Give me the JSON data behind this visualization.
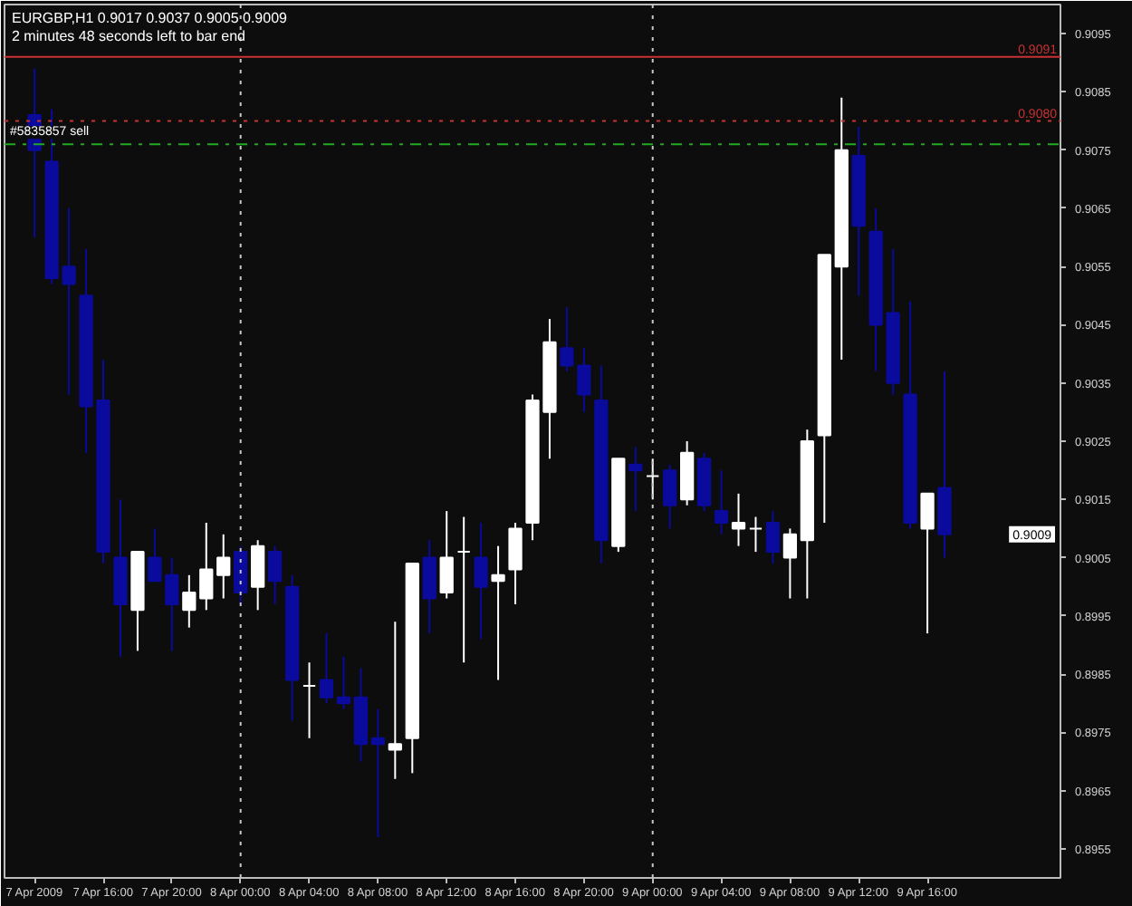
{
  "chart_data": {
    "type": "candlestick",
    "title": "EURGBP,H1  0.9017 0.9037 0.9005 0.9009",
    "subtitle": "2 minutes 48 seconds left to bar end",
    "x": [
      "2009-04-07T12:00",
      "2009-04-07T13:00",
      "2009-04-07T14:00",
      "2009-04-07T15:00",
      "2009-04-07T16:00",
      "2009-04-07T17:00",
      "2009-04-07T18:00",
      "2009-04-07T19:00",
      "2009-04-07T20:00",
      "2009-04-07T21:00",
      "2009-04-07T22:00",
      "2009-04-07T23:00",
      "2009-04-08T00:00",
      "2009-04-08T01:00",
      "2009-04-08T02:00",
      "2009-04-08T03:00",
      "2009-04-08T04:00",
      "2009-04-08T05:00",
      "2009-04-08T06:00",
      "2009-04-08T07:00",
      "2009-04-08T08:00",
      "2009-04-08T09:00",
      "2009-04-08T10:00",
      "2009-04-08T11:00",
      "2009-04-08T12:00",
      "2009-04-08T13:00",
      "2009-04-08T14:00",
      "2009-04-08T15:00",
      "2009-04-08T16:00",
      "2009-04-08T17:00",
      "2009-04-08T18:00",
      "2009-04-08T19:00",
      "2009-04-08T20:00",
      "2009-04-08T21:00",
      "2009-04-08T22:00",
      "2009-04-08T23:00",
      "2009-04-09T00:00",
      "2009-04-09T01:00",
      "2009-04-09T02:00",
      "2009-04-09T03:00",
      "2009-04-09T04:00",
      "2009-04-09T05:00",
      "2009-04-09T06:00",
      "2009-04-09T07:00",
      "2009-04-09T08:00",
      "2009-04-09T09:00",
      "2009-04-09T10:00",
      "2009-04-09T11:00",
      "2009-04-09T12:00",
      "2009-04-09T13:00",
      "2009-04-09T14:00",
      "2009-04-09T15:00",
      "2009-04-09T16:00",
      "2009-04-09T17:00"
    ],
    "ohlc": [
      [
        0.9081,
        0.9089,
        0.906,
        0.9075
      ],
      [
        0.9073,
        0.9082,
        0.9052,
        0.9053
      ],
      [
        0.9055,
        0.9065,
        0.9033,
        0.9052
      ],
      [
        0.905,
        0.9058,
        0.9023,
        0.9031
      ],
      [
        0.9032,
        0.9039,
        0.9004,
        0.9006
      ],
      [
        0.9005,
        0.9015,
        0.8988,
        0.8997
      ],
      [
        0.8996,
        0.9006,
        0.8989,
        0.9006
      ],
      [
        0.9005,
        0.901,
        0.9001,
        0.9001
      ],
      [
        0.9002,
        0.9005,
        0.8989,
        0.8997
      ],
      [
        0.8996,
        0.9002,
        0.8993,
        0.8999
      ],
      [
        0.8998,
        0.9011,
        0.8996,
        0.9003
      ],
      [
        0.9002,
        0.9009,
        0.8998,
        0.9005
      ],
      [
        0.9006,
        0.9007,
        0.8997,
        0.8999
      ],
      [
        0.9,
        0.9008,
        0.8996,
        0.9007
      ],
      [
        0.9006,
        0.9007,
        0.8997,
        0.9001
      ],
      [
        0.9,
        0.9002,
        0.8977,
        0.8984
      ],
      [
        0.8983,
        0.8987,
        0.8974,
        0.8983
      ],
      [
        0.8984,
        0.8992,
        0.898,
        0.8981
      ],
      [
        0.8981,
        0.8988,
        0.8979,
        0.898
      ],
      [
        0.8981,
        0.8986,
        0.897,
        0.8973
      ],
      [
        0.8974,
        0.8979,
        0.8957,
        0.8973
      ],
      [
        0.8972,
        0.8994,
        0.8967,
        0.8973
      ],
      [
        0.8974,
        0.9004,
        0.8968,
        0.9004
      ],
      [
        0.9005,
        0.9008,
        0.8992,
        0.8998
      ],
      [
        0.8999,
        0.9013,
        0.8998,
        0.9005
      ],
      [
        0.9006,
        0.9012,
        0.8987,
        0.9006
      ],
      [
        0.9005,
        0.9011,
        0.8991,
        0.9
      ],
      [
        0.9001,
        0.9007,
        0.8984,
        0.9002
      ],
      [
        0.9003,
        0.9011,
        0.8997,
        0.901
      ],
      [
        0.9011,
        0.9033,
        0.9008,
        0.9032
      ],
      [
        0.903,
        0.9046,
        0.9022,
        0.9042
      ],
      [
        0.9041,
        0.9048,
        0.9037,
        0.9038
      ],
      [
        0.9038,
        0.9041,
        0.903,
        0.9033
      ],
      [
        0.9032,
        0.9038,
        0.9004,
        0.9008
      ],
      [
        0.9007,
        0.9022,
        0.9006,
        0.9022
      ],
      [
        0.9021,
        0.9024,
        0.9013,
        0.902
      ],
      [
        0.9019,
        0.9022,
        0.9015,
        0.9019
      ],
      [
        0.902,
        0.9021,
        0.901,
        0.9014
      ],
      [
        0.9015,
        0.9025,
        0.9014,
        0.9023
      ],
      [
        0.9022,
        0.9023,
        0.9013,
        0.9014
      ],
      [
        0.9013,
        0.902,
        0.9009,
        0.9011
      ],
      [
        0.901,
        0.9016,
        0.9007,
        0.9011
      ],
      [
        0.901,
        0.9012,
        0.9006,
        0.901
      ],
      [
        0.9011,
        0.9013,
        0.9004,
        0.9006
      ],
      [
        0.9005,
        0.901,
        0.8998,
        0.9009
      ],
      [
        0.9008,
        0.9027,
        0.8998,
        0.9025
      ],
      [
        0.9026,
        0.9057,
        0.9011,
        0.9057
      ],
      [
        0.9055,
        0.9084,
        0.9039,
        0.9075
      ],
      [
        0.9074,
        0.9079,
        0.905,
        0.9062
      ],
      [
        0.9061,
        0.9065,
        0.9037,
        0.9045
      ],
      [
        0.9047,
        0.9058,
        0.9033,
        0.9035
      ],
      [
        0.9033,
        0.9049,
        0.901,
        0.9011
      ],
      [
        0.901,
        0.9016,
        0.8992,
        0.9016
      ],
      [
        0.9017,
        0.9037,
        0.9005,
        0.9009
      ]
    ],
    "colors": [
      "#0a0a9c",
      "#0a0a9c",
      "#0a0a9c",
      "#0a0a9c",
      "#0a0a9c",
      "#0a0a9c",
      "#ffffff",
      "#0a0a9c",
      "#0a0a9c",
      "#ffffff",
      "#ffffff",
      "#ffffff",
      "#0a0a9c",
      "#ffffff",
      "#0a0a9c",
      "#0a0a9c",
      "#ffffff",
      "#0a0a9c",
      "#0a0a9c",
      "#0a0a9c",
      "#0a0a9c",
      "#ffffff",
      "#ffffff",
      "#0a0a9c",
      "#ffffff",
      "#ffffff",
      "#0a0a9c",
      "#ffffff",
      "#ffffff",
      "#ffffff",
      "#ffffff",
      "#0a0a9c",
      "#0a0a9c",
      "#0a0a9c",
      "#ffffff",
      "#0a0a9c",
      "#ffffff",
      "#0a0a9c",
      "#ffffff",
      "#0a0a9c",
      "#0a0a9c",
      "#ffffff",
      "#ffffff",
      "#0a0a9c",
      "#ffffff",
      "#ffffff",
      "#ffffff",
      "#ffffff",
      "#0a0a9c",
      "#0a0a9c",
      "#0a0a9c",
      "#0a0a9c",
      "#ffffff",
      "#0a0a9c"
    ],
    "xlim": [
      "2009-04-07T10:15",
      "2009-04-09T23:45"
    ],
    "xticks": [
      {
        "value": "2009-04-07T12:00",
        "label": "7 Apr 2009"
      },
      {
        "value": "2009-04-07T16:00",
        "label": "7 Apr 16:00"
      },
      {
        "value": "2009-04-07T20:00",
        "label": "7 Apr 20:00"
      },
      {
        "value": "2009-04-08T00:00",
        "label": "8 Apr 00:00"
      },
      {
        "value": "2009-04-08T04:00",
        "label": "8 Apr 04:00"
      },
      {
        "value": "2009-04-08T08:00",
        "label": "8 Apr 08:00"
      },
      {
        "value": "2009-04-08T12:00",
        "label": "8 Apr 12:00"
      },
      {
        "value": "2009-04-08T16:00",
        "label": "8 Apr 16:00"
      },
      {
        "value": "2009-04-08T20:00",
        "label": "8 Apr 20:00"
      },
      {
        "value": "2009-04-09T00:00",
        "label": "9 Apr 00:00"
      },
      {
        "value": "2009-04-09T04:00",
        "label": "9 Apr 04:00"
      },
      {
        "value": "2009-04-09T08:00",
        "label": "9 Apr 08:00"
      },
      {
        "value": "2009-04-09T12:00",
        "label": "9 Apr 12:00"
      },
      {
        "value": "2009-04-09T16:00",
        "label": "9 Apr 16:00"
      }
    ],
    "ylim": [
      0.895,
      0.91
    ],
    "yticks": [
      {
        "value": 0.8955,
        "label": "0.8955"
      },
      {
        "value": 0.8965,
        "label": "0.8965"
      },
      {
        "value": 0.8975,
        "label": "0.8975"
      },
      {
        "value": 0.8985,
        "label": "0.8985"
      },
      {
        "value": 0.8995,
        "label": "0.8995"
      },
      {
        "value": 0.9005,
        "label": "0.9005"
      },
      {
        "value": 0.9015,
        "label": "0.9015"
      },
      {
        "value": 0.9025,
        "label": "0.9025"
      },
      {
        "value": 0.9035,
        "label": "0.9035"
      },
      {
        "value": 0.9045,
        "label": "0.9045"
      },
      {
        "value": 0.9055,
        "label": "0.9055"
      },
      {
        "value": 0.9065,
        "label": "0.9065"
      },
      {
        "value": 0.9075,
        "label": "0.9075"
      },
      {
        "value": 0.9085,
        "label": "0.9085"
      },
      {
        "value": 0.9095,
        "label": "0.9095"
      }
    ],
    "ref_lines": [
      {
        "axis": "y",
        "value": 0.9091,
        "label": "0.9091",
        "color": "#c83232",
        "line_style": "solid"
      },
      {
        "axis": "y",
        "value": 0.908,
        "label": "0.9080",
        "color": "#c83232",
        "line_style": "dotted"
      },
      {
        "axis": "y",
        "value": 0.9076,
        "label": "#5835857 sell",
        "color": "#1faa1f",
        "line_style": "dashdot"
      },
      {
        "axis": "x",
        "value": "2009-04-08T00:00",
        "color": "#c8c8c8",
        "line_style": "dotted"
      },
      {
        "axis": "x",
        "value": "2009-04-09T00:00",
        "color": "#c8c8c8",
        "line_style": "dotted"
      }
    ],
    "annotations": [
      "0.9009"
    ],
    "grid": false
  }
}
